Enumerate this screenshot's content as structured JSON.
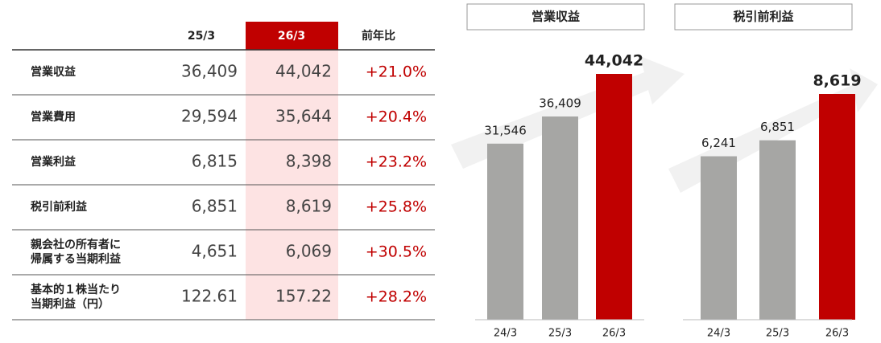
{
  "table": {
    "columns": [
      "25/3",
      "26/3",
      "前年比"
    ],
    "rows": [
      [
        [
          "営業収益"
        ],
        "36,409",
        "44,042",
        "+21.0%"
      ],
      [
        [
          "営業費用"
        ],
        "29,594",
        "35,644",
        "+20.4%"
      ],
      [
        [
          "営業利益"
        ],
        "6,815",
        "8,398",
        "+23.2%"
      ],
      [
        [
          "税引前利益"
        ],
        "6,851",
        "8,619",
        "+25.8%"
      ],
      [
        [
          "親会社の所有者に",
          "帰属する当期利益"
        ],
        "4,651",
        "6,069",
        "+30.5%"
      ],
      [
        [
          "基本的１株当たり",
          "当期利益（円）"
        ],
        "122.61",
        "157.22",
        "+28.2%"
      ]
    ]
  },
  "chart_data": [
    {
      "type": "bar",
      "title": "営業収益",
      "categories": [
        "24/3",
        "25/3",
        "26/3"
      ],
      "values": [
        31546,
        36409,
        44042
      ],
      "value_labels": [
        "31,546",
        "36,409",
        "44,042"
      ],
      "colors": [
        "#a6a6a4",
        "#a6a6a4",
        "#c00000"
      ]
    },
    {
      "type": "bar",
      "title": "税引前利益",
      "categories": [
        "24/3",
        "25/3",
        "26/3"
      ],
      "values": [
        6241,
        6851,
        8619
      ],
      "value_labels": [
        "6,241",
        "6,851",
        "8,619"
      ],
      "colors": [
        "#a6a6a4",
        "#a6a6a4",
        "#c00000"
      ]
    }
  ]
}
